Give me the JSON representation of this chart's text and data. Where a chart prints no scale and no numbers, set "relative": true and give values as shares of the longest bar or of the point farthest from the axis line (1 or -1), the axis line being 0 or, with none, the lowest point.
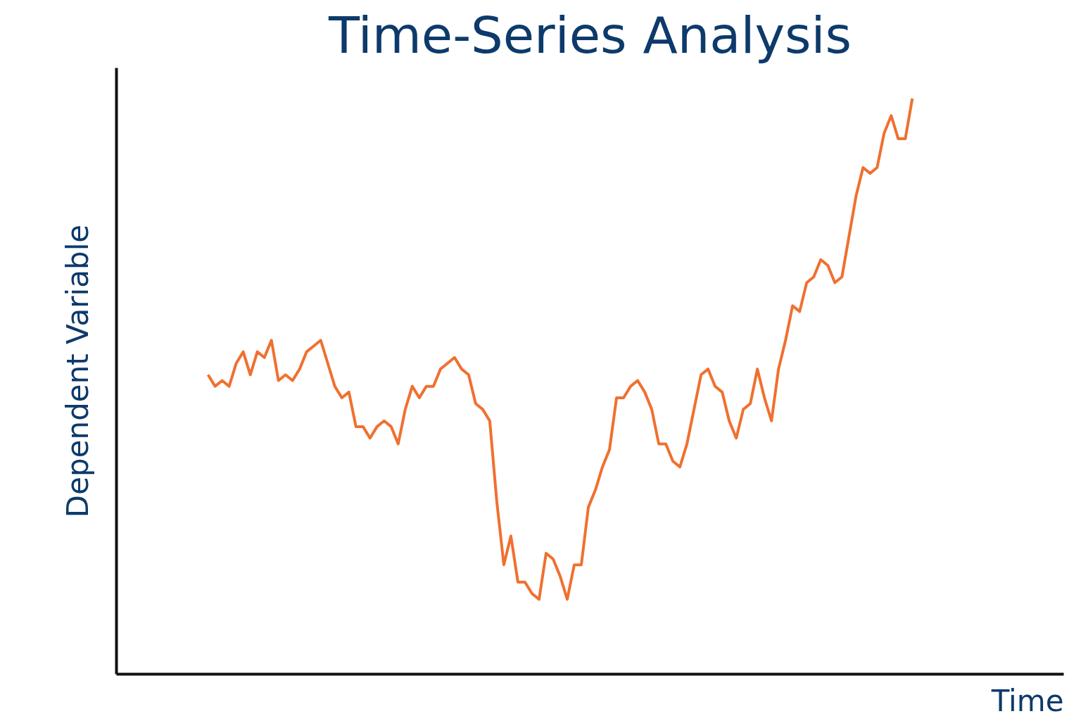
{
  "chart_data": {
    "type": "line",
    "title": "Time-Series Analysis",
    "xlabel": "Time",
    "ylabel": "Dependent Variable",
    "relative": true,
    "tick_labels": false,
    "categories": [
      null,
      null,
      null,
      null,
      null,
      null,
      null,
      null,
      null,
      null,
      null,
      null,
      null,
      null,
      null,
      null,
      null,
      null,
      null,
      null,
      null,
      null,
      null,
      null,
      null,
      null,
      null,
      null,
      null,
      null,
      null,
      null,
      null,
      null,
      null,
      null,
      null,
      null,
      null,
      null,
      null,
      null,
      null,
      null,
      null,
      null,
      null,
      null,
      null,
      null,
      null,
      null,
      null,
      null,
      null,
      null,
      null,
      null,
      null,
      null,
      null,
      null,
      null,
      null,
      null,
      null,
      null,
      null,
      null,
      null,
      null,
      null,
      null,
      null,
      null,
      null,
      null,
      null,
      null,
      null,
      null,
      null,
      null,
      null,
      null,
      null,
      null,
      null,
      null,
      null,
      null,
      null,
      null,
      null,
      null,
      null,
      null,
      null,
      null,
      null,
      null
    ],
    "series": [
      {
        "color": "#f07030",
        "values": [
          0.52,
          0.5,
          0.51,
          0.5,
          0.54,
          0.56,
          0.52,
          0.56,
          0.55,
          0.58,
          0.51,
          0.52,
          0.51,
          0.53,
          0.56,
          0.57,
          0.58,
          0.54,
          0.5,
          0.48,
          0.49,
          0.43,
          0.43,
          0.41,
          0.43,
          0.44,
          0.43,
          0.4,
          0.46,
          0.5,
          0.48,
          0.5,
          0.5,
          0.53,
          0.54,
          0.55,
          0.53,
          0.52,
          0.47,
          0.46,
          0.44,
          0.3,
          0.19,
          0.24,
          0.16,
          0.16,
          0.14,
          0.13,
          0.21,
          0.2,
          0.17,
          0.13,
          0.19,
          0.19,
          0.29,
          0.32,
          0.36,
          0.39,
          0.48,
          0.48,
          0.5,
          0.51,
          0.49,
          0.46,
          0.4,
          0.4,
          0.37,
          0.36,
          0.4,
          0.46,
          0.52,
          0.53,
          0.5,
          0.49,
          0.44,
          0.41,
          0.46,
          0.47,
          0.53,
          0.48,
          0.44,
          0.53,
          0.58,
          0.64,
          0.63,
          0.68,
          0.69,
          0.72,
          0.71,
          0.68,
          0.69,
          0.76,
          0.83,
          0.88,
          0.87,
          0.88,
          0.94,
          0.97,
          0.93,
          0.93,
          1
        ]
      }
    ]
  }
}
